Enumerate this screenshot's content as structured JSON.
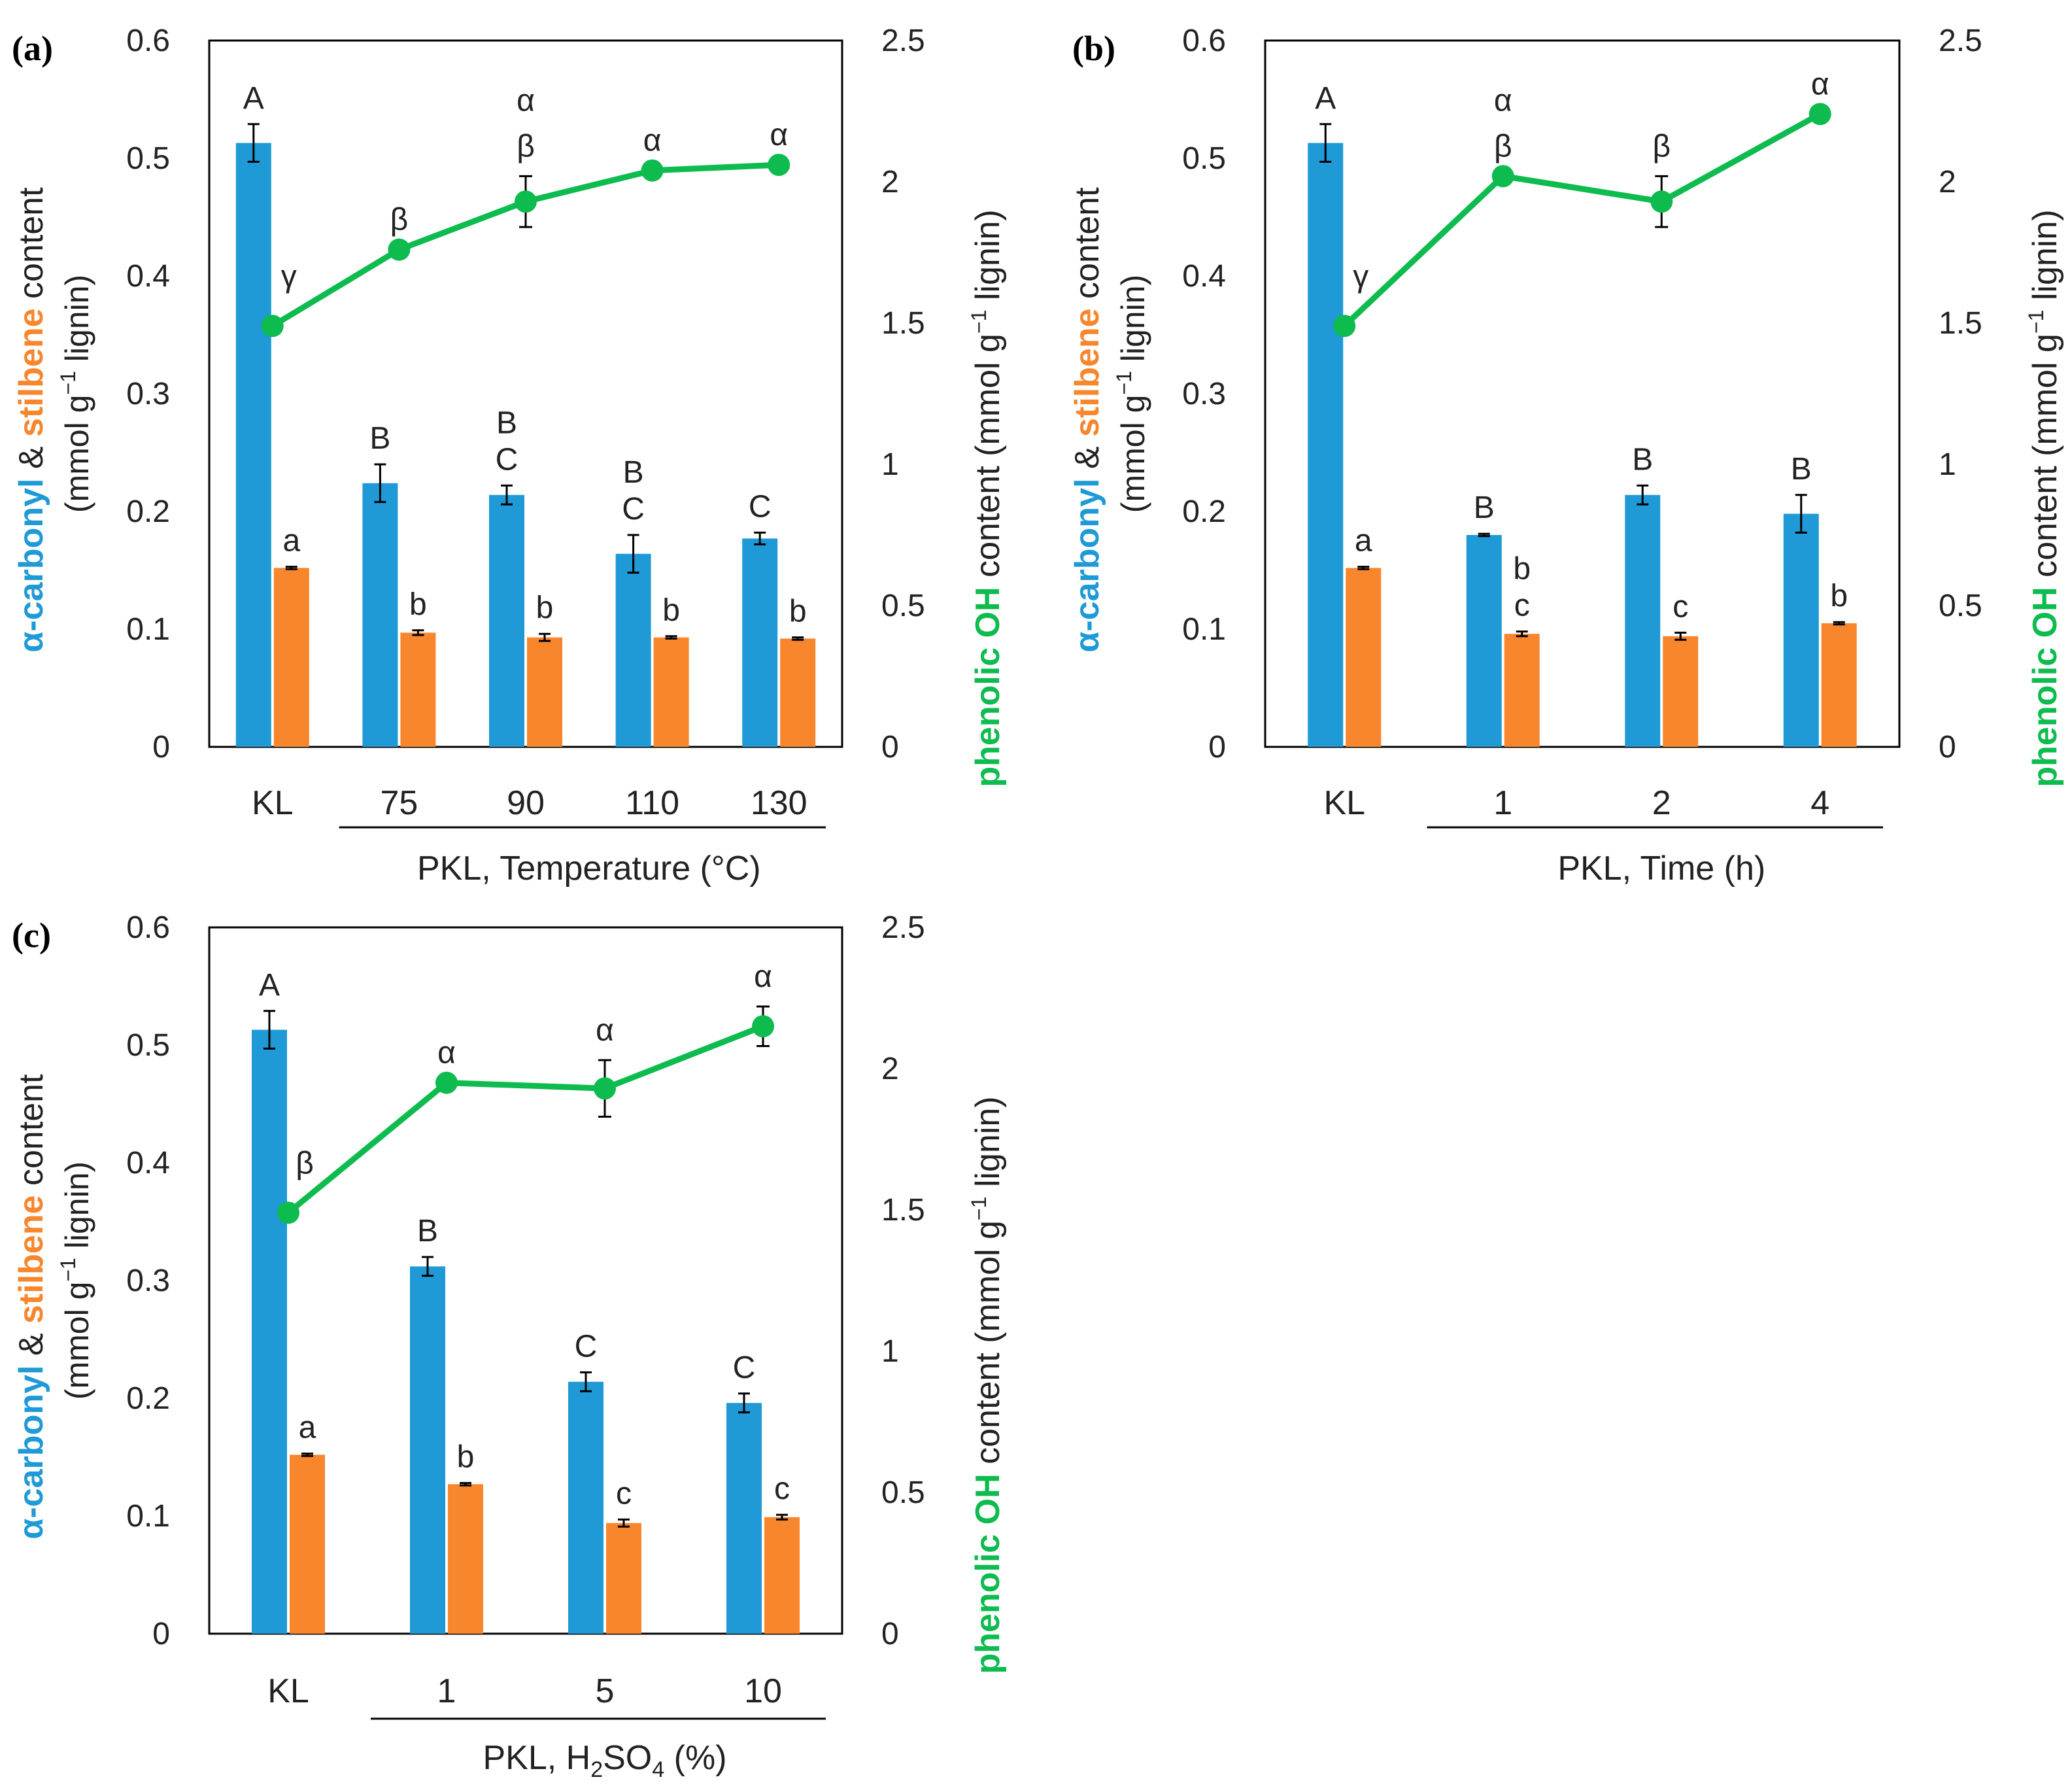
{
  "colors": {
    "carbonyl": "#1f9ad6",
    "stilbene": "#f7862d",
    "phenolic": "#0dbb4f",
    "axis": "#000000",
    "text": "#222222"
  },
  "axis_titles": {
    "left_part1": "α-carbonyl",
    "left_part2": " & ",
    "left_part3": "stilbene",
    "left_part4": " content",
    "left_line2_pre": "(mmol g",
    "left_line2_sup": "−1",
    "left_line2_post": " lignin)",
    "right_part1": "phenolic OH",
    "right_part2": " content (mmol g",
    "right_sup": "−1",
    "right_part3": " lignin)"
  },
  "chart_data": [
    {
      "type": "bar",
      "panel_label": "(a)",
      "categories": [
        "KL",
        "75",
        "90",
        "110",
        "130"
      ],
      "group_bracket_from": 1,
      "xlabel": "PKL, Temperature (°C)",
      "ylim_left": [
        0,
        0.6
      ],
      "yticks_left": [
        "0",
        "0.1",
        "0.2",
        "0.3",
        "0.4",
        "0.5",
        "0.6"
      ],
      "ylim_right": [
        0,
        2.5
      ],
      "yticks_right": [
        "0",
        "0.5",
        "1",
        "1.5",
        "2",
        "2.5"
      ],
      "series": [
        {
          "name": "α-carbonyl",
          "axis": "left",
          "values": [
            0.513,
            0.224,
            0.214,
            0.164,
            0.177
          ],
          "errors": [
            0.016,
            0.016,
            0.008,
            0.016,
            0.005
          ],
          "labels": [
            [
              "A"
            ],
            [
              "B"
            ],
            [
              "B",
              "C"
            ],
            [
              "B",
              "C"
            ],
            [
              "C"
            ]
          ]
        },
        {
          "name": "stilbene",
          "axis": "left",
          "values": [
            0.152,
            0.097,
            0.093,
            0.093,
            0.092
          ],
          "errors": [
            0.001,
            0.002,
            0.003,
            0.001,
            0.001
          ],
          "labels": [
            [
              "a"
            ],
            [
              "b"
            ],
            [
              "b"
            ],
            [
              "b"
            ],
            [
              "b"
            ]
          ]
        },
        {
          "name": "phenolic OH",
          "axis": "right",
          "type": "line",
          "values": [
            1.49,
            1.76,
            1.93,
            2.04,
            2.06
          ],
          "errors": [
            0,
            0,
            0.09,
            0,
            0
          ],
          "labels": [
            [
              "γ"
            ],
            [
              "β"
            ],
            [
              "α",
              "β"
            ],
            [
              "α"
            ],
            [
              "α"
            ]
          ]
        }
      ]
    },
    {
      "type": "bar",
      "panel_label": "(b)",
      "categories": [
        "KL",
        "1",
        "2",
        "4"
      ],
      "group_bracket_from": 1,
      "xlabel": "PKL, Time (h)",
      "ylim_left": [
        0,
        0.6
      ],
      "yticks_left": [
        "0",
        "0.1",
        "0.2",
        "0.3",
        "0.4",
        "0.5",
        "0.6"
      ],
      "ylim_right": [
        0,
        2.5
      ],
      "yticks_right": [
        "0",
        "0.5",
        "1",
        "1.5",
        "2",
        "2.5"
      ],
      "series": [
        {
          "name": "α-carbonyl",
          "axis": "left",
          "values": [
            0.513,
            0.18,
            0.214,
            0.198
          ],
          "errors": [
            0.016,
            0.001,
            0.008,
            0.016
          ],
          "labels": [
            [
              "A"
            ],
            [
              "B"
            ],
            [
              "B"
            ],
            [
              "B"
            ]
          ]
        },
        {
          "name": "stilbene",
          "axis": "left",
          "values": [
            0.152,
            0.096,
            0.094,
            0.105
          ],
          "errors": [
            0.001,
            0.002,
            0.003,
            0.001
          ],
          "labels": [
            [
              "a"
            ],
            [
              "b",
              "c"
            ],
            [
              "c"
            ],
            [
              "b"
            ]
          ]
        },
        {
          "name": "phenolic OH",
          "axis": "right",
          "type": "line",
          "values": [
            1.49,
            2.02,
            1.93,
            2.24
          ],
          "errors": [
            0,
            0,
            0.09,
            0
          ],
          "labels": [
            [
              "γ"
            ],
            [
              "α",
              "β"
            ],
            [
              "β"
            ],
            [
              "α"
            ]
          ]
        }
      ]
    },
    {
      "type": "bar",
      "panel_label": "(c)",
      "categories": [
        "KL",
        "1",
        "5",
        "10"
      ],
      "group_bracket_from": 1,
      "xlabel_pre": "PKL, H",
      "xlabel_sub1": "2",
      "xlabel_mid": "SO",
      "xlabel_sub2": "4",
      "xlabel_post": " (%)",
      "ylim_left": [
        0,
        0.6
      ],
      "yticks_left": [
        "0",
        "0.1",
        "0.2",
        "0.3",
        "0.4",
        "0.5",
        "0.6"
      ],
      "ylim_right": [
        0,
        2.5
      ],
      "yticks_right": [
        "0",
        "0.5",
        "1",
        "1.5",
        "2",
        "2.5"
      ],
      "series": [
        {
          "name": "α-carbonyl",
          "axis": "left",
          "values": [
            0.513,
            0.312,
            0.214,
            0.196
          ],
          "errors": [
            0.016,
            0.008,
            0.008,
            0.008
          ],
          "labels": [
            [
              "A"
            ],
            [
              "B"
            ],
            [
              "C"
            ],
            [
              "C"
            ]
          ]
        },
        {
          "name": "stilbene",
          "axis": "left",
          "values": [
            0.152,
            0.127,
            0.094,
            0.099
          ],
          "errors": [
            0.001,
            0.001,
            0.003,
            0.002
          ],
          "labels": [
            [
              "a"
            ],
            [
              "b"
            ],
            [
              "c"
            ],
            [
              "c"
            ]
          ]
        },
        {
          "name": "phenolic OH",
          "axis": "right",
          "type": "line",
          "values": [
            1.49,
            1.95,
            1.93,
            2.15
          ],
          "errors": [
            0,
            0,
            0.1,
            0.07
          ],
          "labels": [
            [
              "β"
            ],
            [
              "α"
            ],
            [
              "α"
            ],
            [
              "α"
            ]
          ]
        }
      ]
    }
  ]
}
